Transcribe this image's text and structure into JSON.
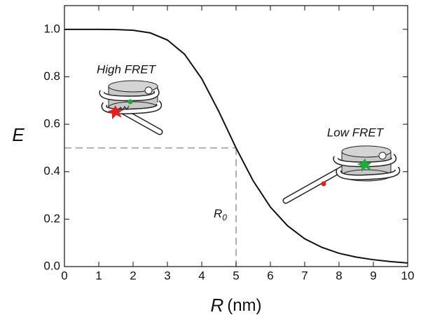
{
  "chart_data": {
    "type": "line",
    "x_label": {
      "variable": "R",
      "unit": "(nm)"
    },
    "y_label": "E",
    "x": [
      0,
      0.5,
      1,
      1.5,
      2,
      2.5,
      3,
      3.5,
      4,
      4.5,
      5,
      5.5,
      6,
      6.5,
      7,
      7.5,
      8,
      8.5,
      9,
      9.5,
      10
    ],
    "series": [
      {
        "name": "E",
        "color": "#111111",
        "values": [
          1.0,
          1.0,
          1.0,
          0.999,
          0.996,
          0.985,
          0.955,
          0.895,
          0.792,
          0.653,
          0.5,
          0.361,
          0.251,
          0.172,
          0.117,
          0.081,
          0.056,
          0.04,
          0.029,
          0.021,
          0.015
        ]
      }
    ],
    "xlim": [
      0,
      10
    ],
    "xticks": [
      0,
      1,
      2,
      3,
      4,
      5,
      6,
      7,
      8,
      9,
      10
    ],
    "ylim": [
      0,
      1.1
    ],
    "yticks": [
      {
        "value": 0,
        "label": "0.0"
      },
      0.2,
      0.4,
      0.6,
      0.8,
      {
        "value": 1,
        "label": "1.0"
      }
    ],
    "annotations": [
      {
        "text": "R",
        "subscript": "0",
        "x": 5,
        "y": 0.5
      },
      {
        "text": "High FRET"
      },
      {
        "text": "Low FRET"
      }
    ]
  }
}
